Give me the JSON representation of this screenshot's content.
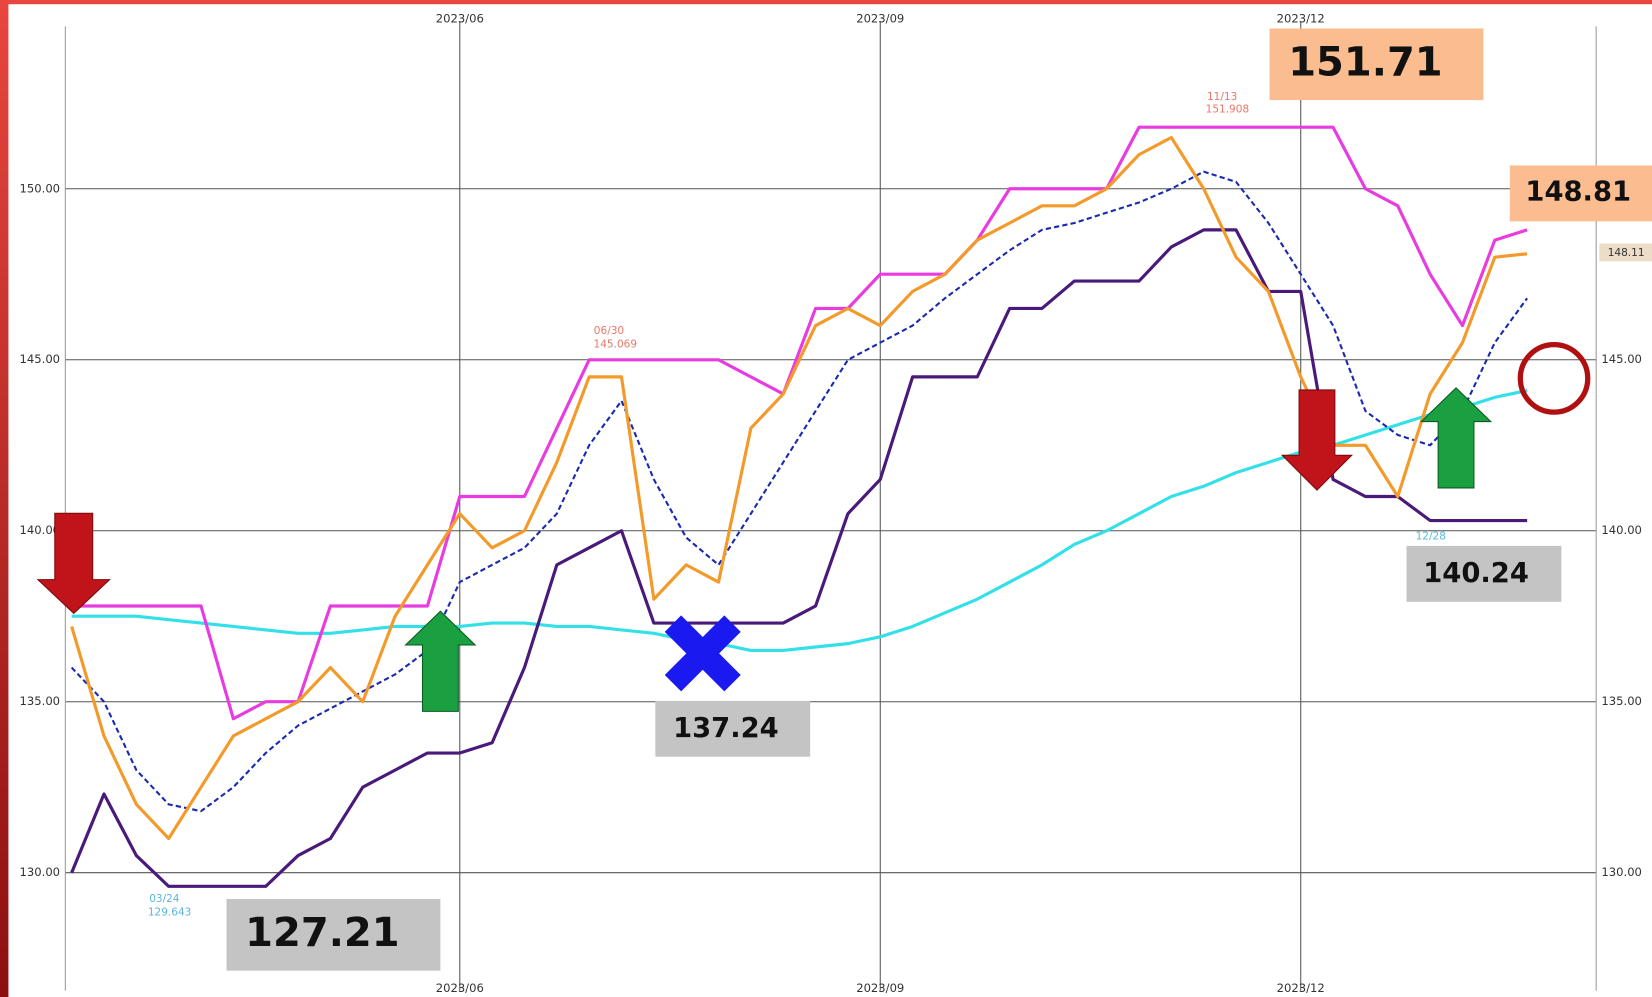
{
  "chart_data": {
    "type": "line",
    "categories": [
      null,
      null,
      null,
      null,
      null,
      null,
      null,
      null,
      null,
      null,
      null,
      null,
      "2023/06",
      null,
      null,
      null,
      null,
      null,
      null,
      null,
      null,
      null,
      null,
      null,
      null,
      "2023/09",
      null,
      null,
      null,
      null,
      null,
      null,
      null,
      null,
      null,
      null,
      null,
      null,
      "2023/12",
      null,
      null,
      null,
      null,
      null,
      null,
      null
    ],
    "series": [
      {
        "color": "#33e0e8",
        "values": [
          137.5,
          137.5,
          137.5,
          137.4,
          137.3,
          137.2,
          137.1,
          137.0,
          137.0,
          137.1,
          137.2,
          137.2,
          137.2,
          137.3,
          137.3,
          137.2,
          137.2,
          137.1,
          137.0,
          136.8,
          136.7,
          136.5,
          136.5,
          136.6,
          136.7,
          136.9,
          137.2,
          137.6,
          138.0,
          138.5,
          139.0,
          139.6,
          140.0,
          140.5,
          141.0,
          141.3,
          141.7,
          142.0,
          142.3,
          142.5,
          142.8,
          143.1,
          143.4,
          143.6,
          143.9,
          144.1
        ]
      },
      {
        "color": "#e83ce0",
        "values": [
          137.8,
          137.8,
          137.8,
          137.8,
          137.8,
          134.5,
          135.0,
          135.0,
          137.8,
          137.8,
          137.8,
          137.8,
          141.0,
          141.0,
          141.0,
          143.0,
          145.0,
          145.0,
          145.0,
          145.0,
          145.0,
          144.5,
          144.0,
          146.5,
          146.5,
          147.5,
          147.5,
          147.5,
          148.5,
          150.0,
          150.0,
          150.0,
          150.0,
          151.8,
          151.8,
          151.8,
          151.8,
          151.8,
          151.8,
          151.8,
          150.0,
          149.5,
          147.5,
          146.0,
          148.5,
          148.8
        ]
      },
      {
        "color": "#4a1a7a",
        "values": [
          130.0,
          132.3,
          130.5,
          129.6,
          129.6,
          129.6,
          129.6,
          130.5,
          131.0,
          132.5,
          133.0,
          133.5,
          133.5,
          133.8,
          136.0,
          139.0,
          139.5,
          140.0,
          137.3,
          137.3,
          137.3,
          137.3,
          137.3,
          137.8,
          140.5,
          141.5,
          144.5,
          144.5,
          144.5,
          146.5,
          146.5,
          147.3,
          147.3,
          147.3,
          148.3,
          148.8,
          148.8,
          147.0,
          147.0,
          141.5,
          141.0,
          141.0,
          140.3,
          140.3,
          140.3,
          140.3
        ]
      },
      {
        "color": "#1a2ab0",
        "dashed": true,
        "values": [
          136.0,
          135.0,
          133.0,
          132.0,
          131.8,
          132.5,
          133.5,
          134.3,
          134.8,
          135.3,
          135.8,
          136.5,
          138.5,
          139.0,
          139.5,
          140.5,
          142.5,
          143.8,
          141.5,
          139.8,
          139.0,
          140.5,
          142.0,
          143.5,
          145.0,
          145.5,
          146.0,
          146.8,
          147.5,
          148.2,
          148.8,
          149.0,
          149.3,
          149.6,
          150.0,
          150.5,
          150.2,
          149.0,
          147.5,
          146.0,
          143.5,
          142.8,
          142.5,
          143.5,
          145.5,
          146.8
        ]
      },
      {
        "color": "#f39a2a",
        "values": [
          137.2,
          134.0,
          132.0,
          131.0,
          132.5,
          134.0,
          134.5,
          135.0,
          136.0,
          135.0,
          137.5,
          139.0,
          140.5,
          139.5,
          140.0,
          142.0,
          144.5,
          144.5,
          138.0,
          139.0,
          138.5,
          143.0,
          144.0,
          146.0,
          146.5,
          146.0,
          147.0,
          147.5,
          148.5,
          149.0,
          149.5,
          149.5,
          150.0,
          151.0,
          151.5,
          150.0,
          148.0,
          147.0,
          144.5,
          142.5,
          142.5,
          141.0,
          144.0,
          145.5,
          148.0,
          148.1
        ]
      }
    ],
    "ylim": [
      126.55,
      154.75
    ],
    "yticks": [
      {
        "value": 130,
        "label": "130.00"
      },
      {
        "value": 135,
        "label": "135.00"
      },
      {
        "value": 140,
        "label": "140.00"
      },
      {
        "value": 145,
        "label": "145.00"
      },
      {
        "value": 150,
        "label": "150.00"
      }
    ],
    "grid": true,
    "annotations": {
      "high_box": "151.71",
      "recent_high_box": "148.81",
      "recent_low_box": "140.24",
      "mid_low_box": "137.24",
      "low_box": "127.21",
      "peak1_date": "06/30",
      "peak1_value": "145.069",
      "peak2_date": "11/13",
      "peak2_value": "151.908",
      "low1_date": "03/24",
      "low1_value": "129.643",
      "low2_date": "12/28",
      "price_tag": "148.11"
    }
  }
}
